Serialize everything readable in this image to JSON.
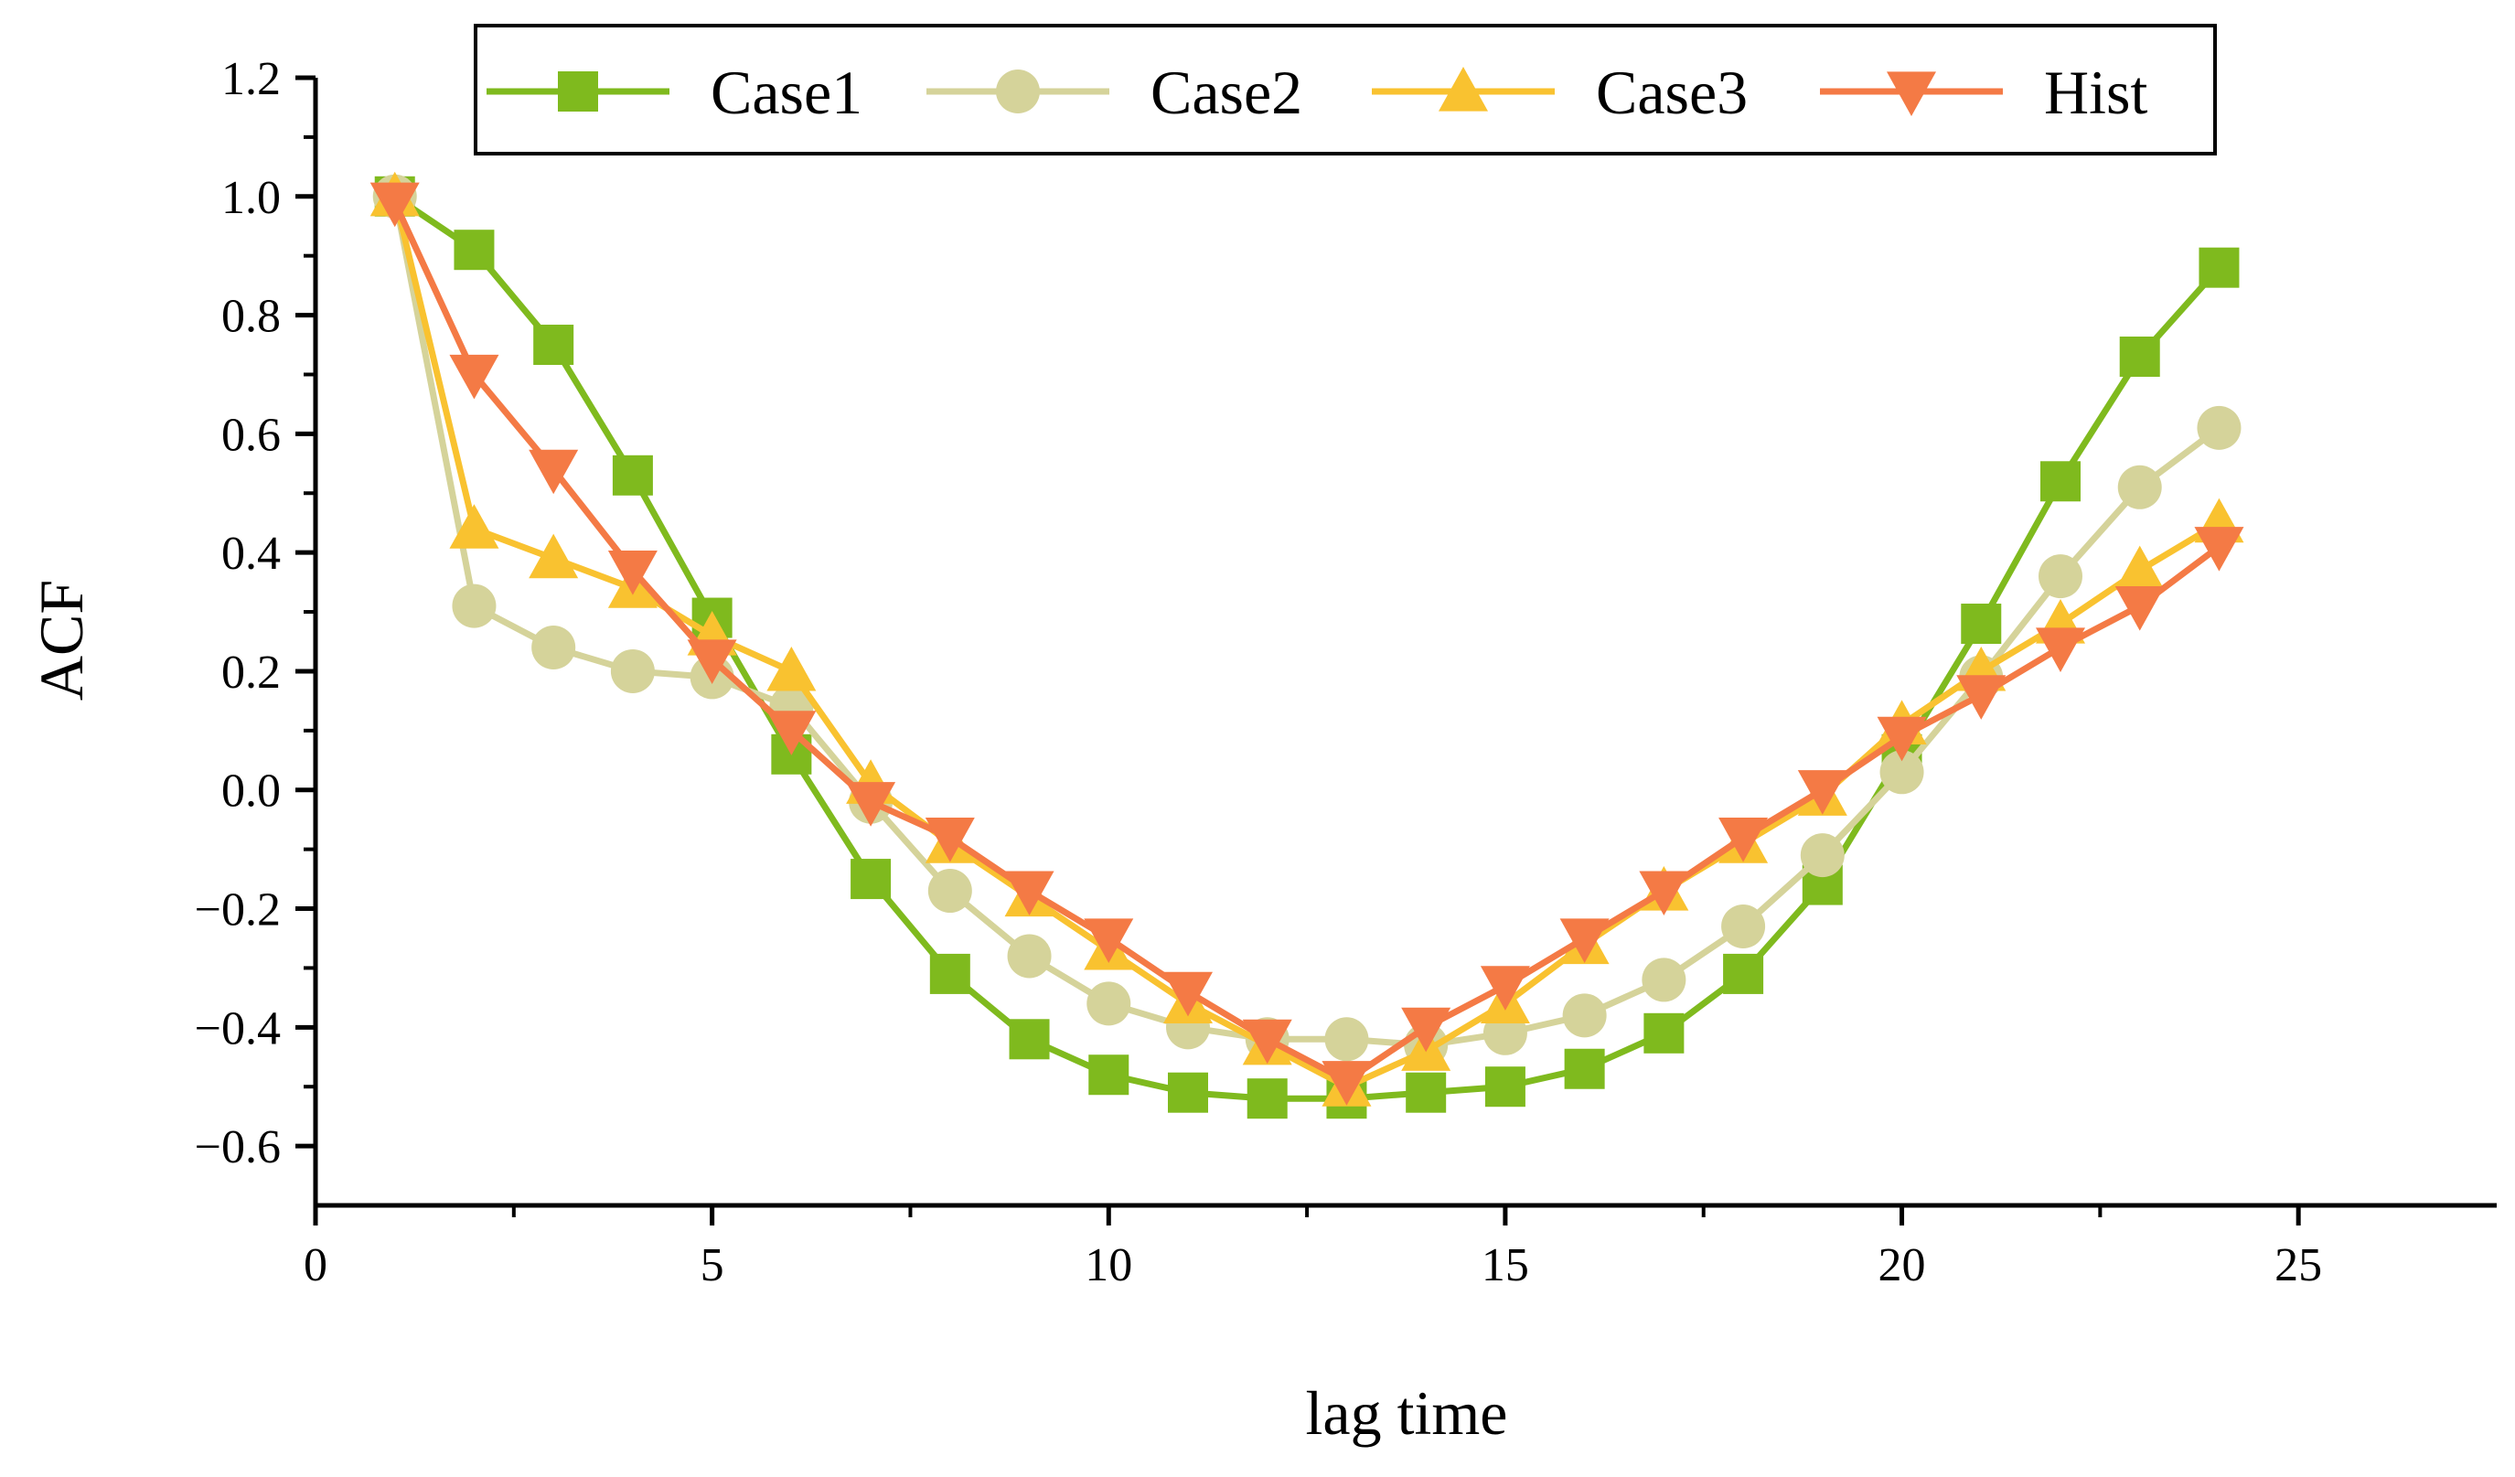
{
  "chart_data": {
    "type": "line",
    "title": "",
    "xlabel": "lag time",
    "ylabel": "ACF",
    "xlim": [
      0,
      27.5
    ],
    "ylim": [
      -0.7,
      1.2
    ],
    "xticks": [
      0,
      5,
      10,
      15,
      20,
      25
    ],
    "xtick_labels": [
      "0",
      "5",
      "10",
      "15",
      "20",
      "25"
    ],
    "yticks": [
      1.2,
      1.0,
      0.8,
      0.6,
      0.4,
      0.2,
      0.0,
      -0.2,
      -0.4,
      -0.6
    ],
    "ytick_labels": [
      "1.2",
      "1.0",
      "0.8",
      "0.6",
      "0.4",
      "0.2",
      "0.0",
      "−0.2",
      "−0.4",
      "−0.6"
    ],
    "legend_position": "top",
    "x": [
      1,
      2,
      3,
      4,
      5,
      6,
      7,
      8,
      9,
      10,
      11,
      12,
      13,
      14,
      15,
      16,
      17,
      18,
      19,
      20,
      21,
      22,
      23,
      24
    ],
    "series": [
      {
        "name": "Case1",
        "color": "#7fba1e",
        "marker": "square",
        "values": [
          1.0,
          0.91,
          0.75,
          0.53,
          0.29,
          0.06,
          -0.15,
          -0.31,
          -0.42,
          -0.48,
          -0.51,
          -0.52,
          -0.52,
          -0.51,
          -0.5,
          -0.47,
          -0.41,
          -0.31,
          -0.16,
          0.06,
          0.28,
          0.52,
          0.73,
          0.88
        ]
      },
      {
        "name": "Case2",
        "color": "#d5d39a",
        "marker": "circle",
        "values": [
          1.0,
          0.31,
          0.24,
          0.2,
          0.19,
          0.14,
          -0.02,
          -0.17,
          -0.28,
          -0.36,
          -0.4,
          -0.42,
          -0.42,
          -0.43,
          -0.41,
          -0.38,
          -0.32,
          -0.23,
          -0.11,
          0.03,
          0.19,
          0.36,
          0.51,
          0.61
        ]
      },
      {
        "name": "Case3",
        "color": "#f9c230",
        "marker": "triangle-up",
        "values": [
          1.0,
          0.44,
          0.39,
          0.34,
          0.26,
          0.2,
          0.01,
          -0.09,
          -0.18,
          -0.27,
          -0.36,
          -0.43,
          -0.5,
          -0.44,
          -0.36,
          -0.26,
          -0.17,
          -0.09,
          -0.01,
          0.11,
          0.2,
          0.28,
          0.37,
          0.45
        ]
      },
      {
        "name": "Hist",
        "color": "#f47a45",
        "marker": "triangle-down",
        "values": [
          0.99,
          0.7,
          0.54,
          0.37,
          0.22,
          0.1,
          -0.02,
          -0.08,
          -0.17,
          -0.25,
          -0.34,
          -0.42,
          -0.49,
          -0.4,
          -0.33,
          -0.25,
          -0.17,
          -0.08,
          0.0,
          0.09,
          0.16,
          0.24,
          0.31,
          0.41
        ]
      }
    ]
  }
}
